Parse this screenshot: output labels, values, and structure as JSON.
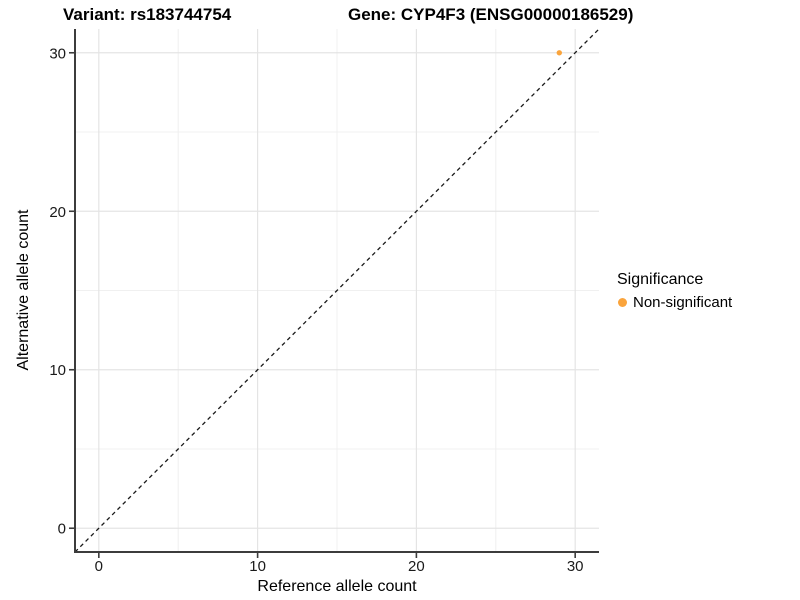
{
  "header": {
    "variant_title": "Variant: rs183744754",
    "gene_title": "Gene: CYP4F3 (ENSG00000186529)"
  },
  "axes": {
    "x_label": "Reference allele count",
    "y_label": "Alternative allele count"
  },
  "legend": {
    "title": "Significance",
    "items": [
      {
        "label": "Non-significant",
        "color": "#FAA43C",
        "marker": "circle-icon"
      }
    ]
  },
  "colors": {
    "background": "#FFFFFF",
    "grid_major": "#E4E4E4",
    "grid_minor": "#F0F0F0",
    "axis_line": "#3C3C3C",
    "tick_mark": "#3C3C3C",
    "tick_label": "#1A1A1A",
    "reference_line": "#1A1A1A",
    "point": "#FAA43C"
  },
  "chart_data": {
    "type": "scatter",
    "title": "Variant: rs183744754 | Gene: CYP4F3 (ENSG00000186529)",
    "xlabel": "Reference allele count",
    "ylabel": "Alternative allele count",
    "xlim": [
      -1.5,
      31.5
    ],
    "ylim": [
      -1.5,
      31.5
    ],
    "x_major_ticks": [
      0,
      10,
      20,
      30
    ],
    "y_major_ticks": [
      0,
      10,
      20,
      30
    ],
    "x_minor_ticks": [
      5,
      15,
      25
    ],
    "y_minor_ticks": [
      5,
      15,
      25
    ],
    "grid": "on",
    "legend_position": "right",
    "series": [
      {
        "name": "Non-significant",
        "color": "#FAA43C",
        "points": [
          {
            "x": 29,
            "y": 30
          }
        ]
      }
    ],
    "reference_line": {
      "type": "identity y=x",
      "from": [
        -1.5,
        -1.5
      ],
      "to": [
        31.5,
        31.5
      ],
      "style": "dashed",
      "color": "#1A1A1A"
    }
  }
}
